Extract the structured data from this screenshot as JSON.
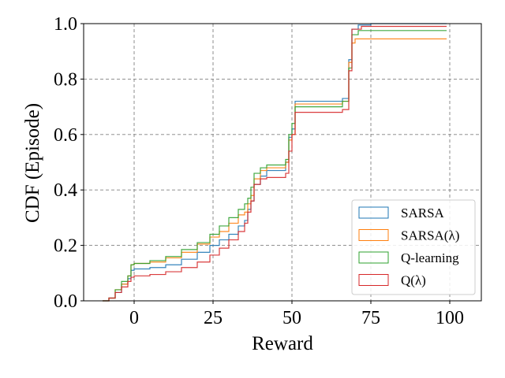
{
  "chart_data": {
    "type": "line",
    "step": true,
    "title": "",
    "xlabel": "Reward",
    "ylabel": "CDF (Episode)",
    "xlim": [
      -16,
      110
    ],
    "ylim": [
      0.0,
      1.0
    ],
    "xticks": [
      0,
      25,
      50,
      75,
      100
    ],
    "xtick_labels": [
      "0",
      "25",
      "50",
      "75",
      "100"
    ],
    "yticks": [
      0.0,
      0.2,
      0.4,
      0.6,
      0.8,
      1.0
    ],
    "ytick_labels": [
      "0.0",
      "0.2",
      "0.4",
      "0.6",
      "0.8",
      "1.0"
    ],
    "grid": true,
    "grid_style": "dashed",
    "legend_position": "lower-right",
    "series": [
      {
        "name": "SARSA",
        "color": "#1f77b4",
        "points": [
          [
            -10,
            0.0
          ],
          [
            -8,
            0.01
          ],
          [
            -6,
            0.03
          ],
          [
            -4,
            0.06
          ],
          [
            -2,
            0.08
          ],
          [
            -1,
            0.11
          ],
          [
            0,
            0.115
          ],
          [
            5,
            0.12
          ],
          [
            10,
            0.13
          ],
          [
            15,
            0.15
          ],
          [
            20,
            0.175
          ],
          [
            24,
            0.2
          ],
          [
            27,
            0.22
          ],
          [
            30,
            0.24
          ],
          [
            33,
            0.27
          ],
          [
            35,
            0.29
          ],
          [
            36,
            0.33
          ],
          [
            37,
            0.36
          ],
          [
            38,
            0.42
          ],
          [
            40,
            0.45
          ],
          [
            42,
            0.47
          ],
          [
            48,
            0.5
          ],
          [
            49,
            0.59
          ],
          [
            50,
            0.62
          ],
          [
            51,
            0.72
          ],
          [
            60,
            0.72
          ],
          [
            66,
            0.73
          ],
          [
            68,
            0.87
          ],
          [
            69,
            0.98
          ],
          [
            71,
            0.995
          ],
          [
            75,
            1.0
          ],
          [
            99,
            1.0
          ]
        ]
      },
      {
        "name": "SARSA(λ)",
        "color": "#ff7f0e",
        "points": [
          [
            -10,
            0.0
          ],
          [
            -8,
            0.01
          ],
          [
            -6,
            0.04
          ],
          [
            -4,
            0.06
          ],
          [
            -2,
            0.09
          ],
          [
            -1,
            0.13
          ],
          [
            0,
            0.135
          ],
          [
            5,
            0.14
          ],
          [
            10,
            0.155
          ],
          [
            15,
            0.175
          ],
          [
            20,
            0.205
          ],
          [
            24,
            0.23
          ],
          [
            27,
            0.25
          ],
          [
            30,
            0.28
          ],
          [
            33,
            0.31
          ],
          [
            35,
            0.32
          ],
          [
            36,
            0.35
          ],
          [
            37,
            0.38
          ],
          [
            38,
            0.44
          ],
          [
            40,
            0.47
          ],
          [
            42,
            0.48
          ],
          [
            48,
            0.5
          ],
          [
            49,
            0.58
          ],
          [
            50,
            0.6
          ],
          [
            51,
            0.71
          ],
          [
            60,
            0.71
          ],
          [
            66,
            0.72
          ],
          [
            68,
            0.86
          ],
          [
            69,
            0.93
          ],
          [
            70,
            0.945
          ],
          [
            99,
            0.945
          ]
        ]
      },
      {
        "name": "Q-learning",
        "color": "#2ca02c",
        "points": [
          [
            -10,
            0.0
          ],
          [
            -8,
            0.01
          ],
          [
            -6,
            0.04
          ],
          [
            -4,
            0.07
          ],
          [
            -2,
            0.09
          ],
          [
            -1,
            0.13
          ],
          [
            0,
            0.135
          ],
          [
            5,
            0.145
          ],
          [
            10,
            0.16
          ],
          [
            15,
            0.185
          ],
          [
            20,
            0.21
          ],
          [
            24,
            0.24
          ],
          [
            27,
            0.27
          ],
          [
            30,
            0.3
          ],
          [
            33,
            0.33
          ],
          [
            35,
            0.35
          ],
          [
            36,
            0.37
          ],
          [
            37,
            0.41
          ],
          [
            38,
            0.46
          ],
          [
            40,
            0.48
          ],
          [
            42,
            0.49
          ],
          [
            48,
            0.51
          ],
          [
            49,
            0.6
          ],
          [
            50,
            0.64
          ],
          [
            51,
            0.7
          ],
          [
            60,
            0.7
          ],
          [
            66,
            0.72
          ],
          [
            68,
            0.84
          ],
          [
            69,
            0.96
          ],
          [
            71,
            0.975
          ],
          [
            99,
            0.975
          ]
        ]
      },
      {
        "name": "Q(λ)",
        "color": "#d62728",
        "points": [
          [
            -10,
            0.0
          ],
          [
            -8,
            0.01
          ],
          [
            -6,
            0.03
          ],
          [
            -4,
            0.05
          ],
          [
            -2,
            0.07
          ],
          [
            -1,
            0.085
          ],
          [
            0,
            0.09
          ],
          [
            5,
            0.095
          ],
          [
            10,
            0.105
          ],
          [
            15,
            0.12
          ],
          [
            20,
            0.14
          ],
          [
            24,
            0.165
          ],
          [
            27,
            0.19
          ],
          [
            30,
            0.22
          ],
          [
            33,
            0.25
          ],
          [
            35,
            0.28
          ],
          [
            36,
            0.32
          ],
          [
            37,
            0.36
          ],
          [
            38,
            0.42
          ],
          [
            40,
            0.44
          ],
          [
            42,
            0.445
          ],
          [
            48,
            0.46
          ],
          [
            49,
            0.54
          ],
          [
            50,
            0.6
          ],
          [
            51,
            0.68
          ],
          [
            60,
            0.68
          ],
          [
            66,
            0.69
          ],
          [
            68,
            0.83
          ],
          [
            69,
            0.98
          ],
          [
            72,
            0.99
          ],
          [
            99,
            0.99
          ]
        ]
      }
    ]
  }
}
